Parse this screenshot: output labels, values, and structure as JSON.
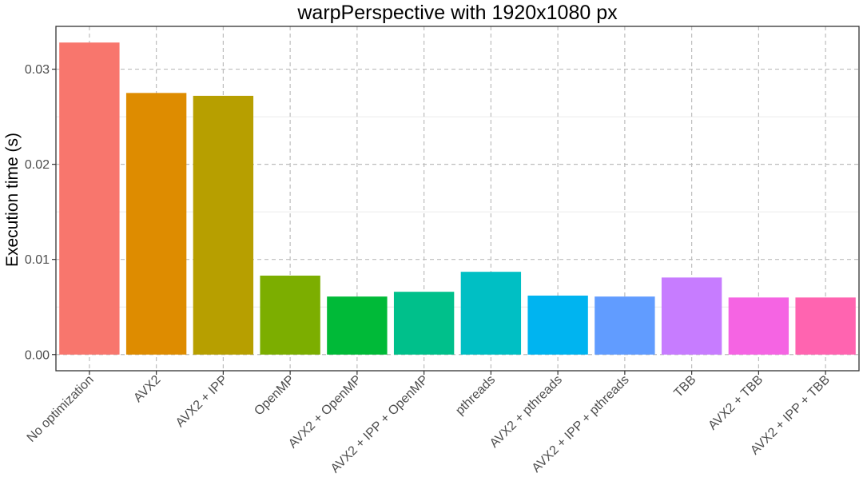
{
  "chart_data": {
    "type": "bar",
    "title": "warpPerspective with 1920x1080 px",
    "xlabel": "",
    "ylabel": "Execution time (s)",
    "ylim": [
      -0.0017,
      0.0345
    ],
    "yticks": [
      0.0,
      0.01,
      0.02,
      0.03
    ],
    "ytick_labels": [
      "0.00",
      "0.01",
      "0.02",
      "0.03"
    ],
    "grid": true,
    "legend": "none",
    "categories": [
      "No optimization",
      "AVX2",
      "AVX2 + IPP",
      "OpenMP",
      "AVX2 + OpenMP",
      "AVX2 + IPP + OpenMP",
      "pthreads",
      "AVX2 + pthreads",
      "AVX2 + IPP + pthreads",
      "TBB",
      "AVX2 + TBB",
      "AVX2 + IPP + TBB"
    ],
    "values": [
      0.0328,
      0.0275,
      0.0272,
      0.0083,
      0.0061,
      0.0066,
      0.0087,
      0.0062,
      0.0061,
      0.0081,
      0.006,
      0.006
    ],
    "colors": [
      "#F8766D",
      "#DE8C00",
      "#B79F00",
      "#7CAE00",
      "#00BA38",
      "#00C08B",
      "#00BFC4",
      "#00B4F0",
      "#619CFF",
      "#C77CFF",
      "#F564E3",
      "#FF64B0"
    ]
  }
}
